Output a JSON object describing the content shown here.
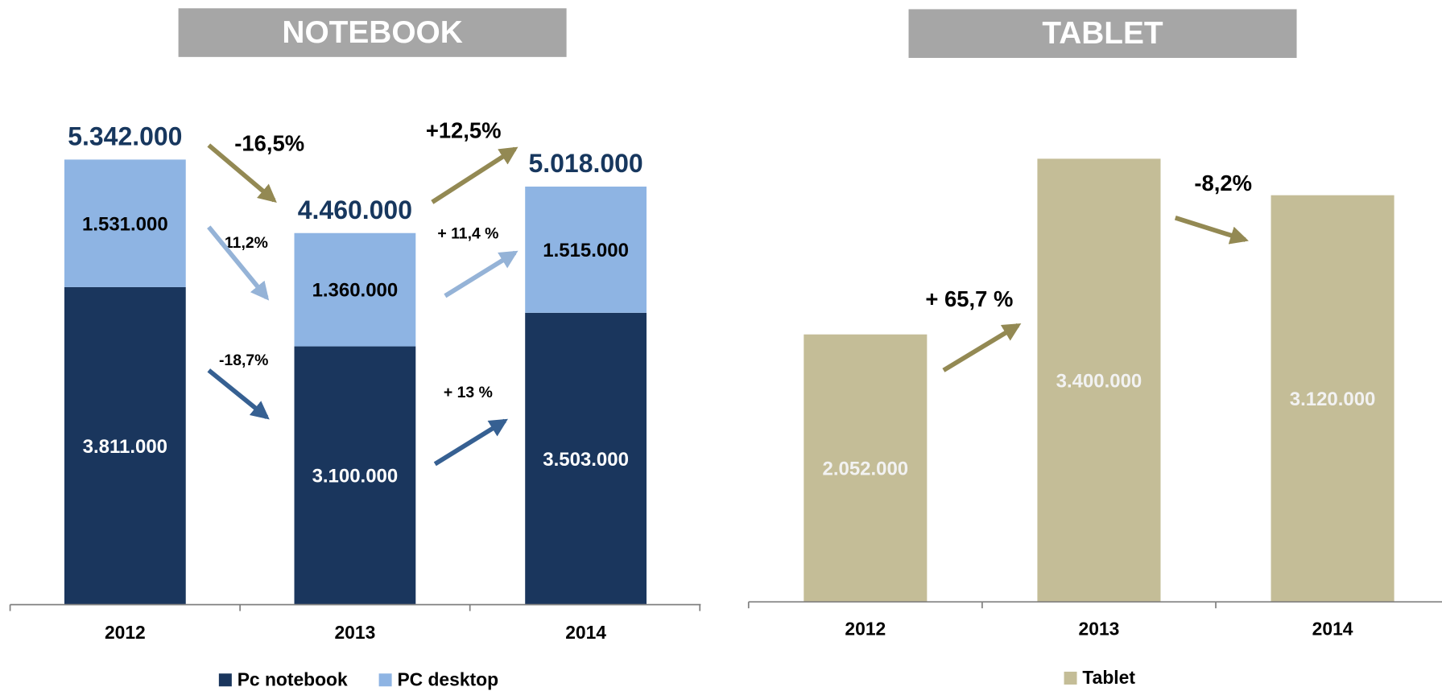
{
  "chart_data": [
    {
      "type": "bar",
      "stacked": true,
      "title": "NOTEBOOK",
      "categories": [
        "2012",
        "2013",
        "2014"
      ],
      "series": [
        {
          "name": "Pc notebook",
          "color": "#1a365d",
          "label_color": "#ffffff",
          "values": [
            3811000,
            3100000,
            3503000
          ],
          "value_labels": [
            "3.811.000",
            "3.100.000",
            "3.503.000"
          ]
        },
        {
          "name": "PC desktop",
          "color": "#8eb4e3",
          "label_color": "#000000",
          "values": [
            1531000,
            1360000,
            1515000
          ],
          "value_labels": [
            "1.531.000",
            "1.360.000",
            "1.515.000"
          ]
        }
      ],
      "total_labels": [
        "5.342.000",
        "4.460.000",
        "5.018.000"
      ],
      "ylim": [
        0,
        6000000
      ],
      "annotations": [
        {
          "text": "-16,5%",
          "color": "#938953"
        },
        {
          "text": "+12,5%",
          "color": "#938953"
        },
        {
          "text": "-11,2%",
          "color": "#95b3d7"
        },
        {
          "text": "+ 11,4 %",
          "color": "#95b3d7"
        },
        {
          "text": "-18,7%",
          "color": "#366092"
        },
        {
          "text": "+ 13 %",
          "color": "#366092"
        }
      ]
    },
    {
      "type": "bar",
      "stacked": false,
      "title": "TABLET",
      "categories": [
        "2012",
        "2013",
        "2014"
      ],
      "series": [
        {
          "name": "Tablet",
          "color": "#c4bd97",
          "label_color": "#f2f2f2",
          "values": [
            2052000,
            3400000,
            3120000
          ],
          "value_labels": [
            "2.052.000",
            "3.400.000",
            "3.120.000"
          ]
        }
      ],
      "ylim": [
        0,
        3800000
      ],
      "annotations": [
        {
          "text": "+ 65,7 %",
          "color": "#938953"
        },
        {
          "text": "-8,2%",
          "color": "#938953"
        }
      ]
    }
  ]
}
